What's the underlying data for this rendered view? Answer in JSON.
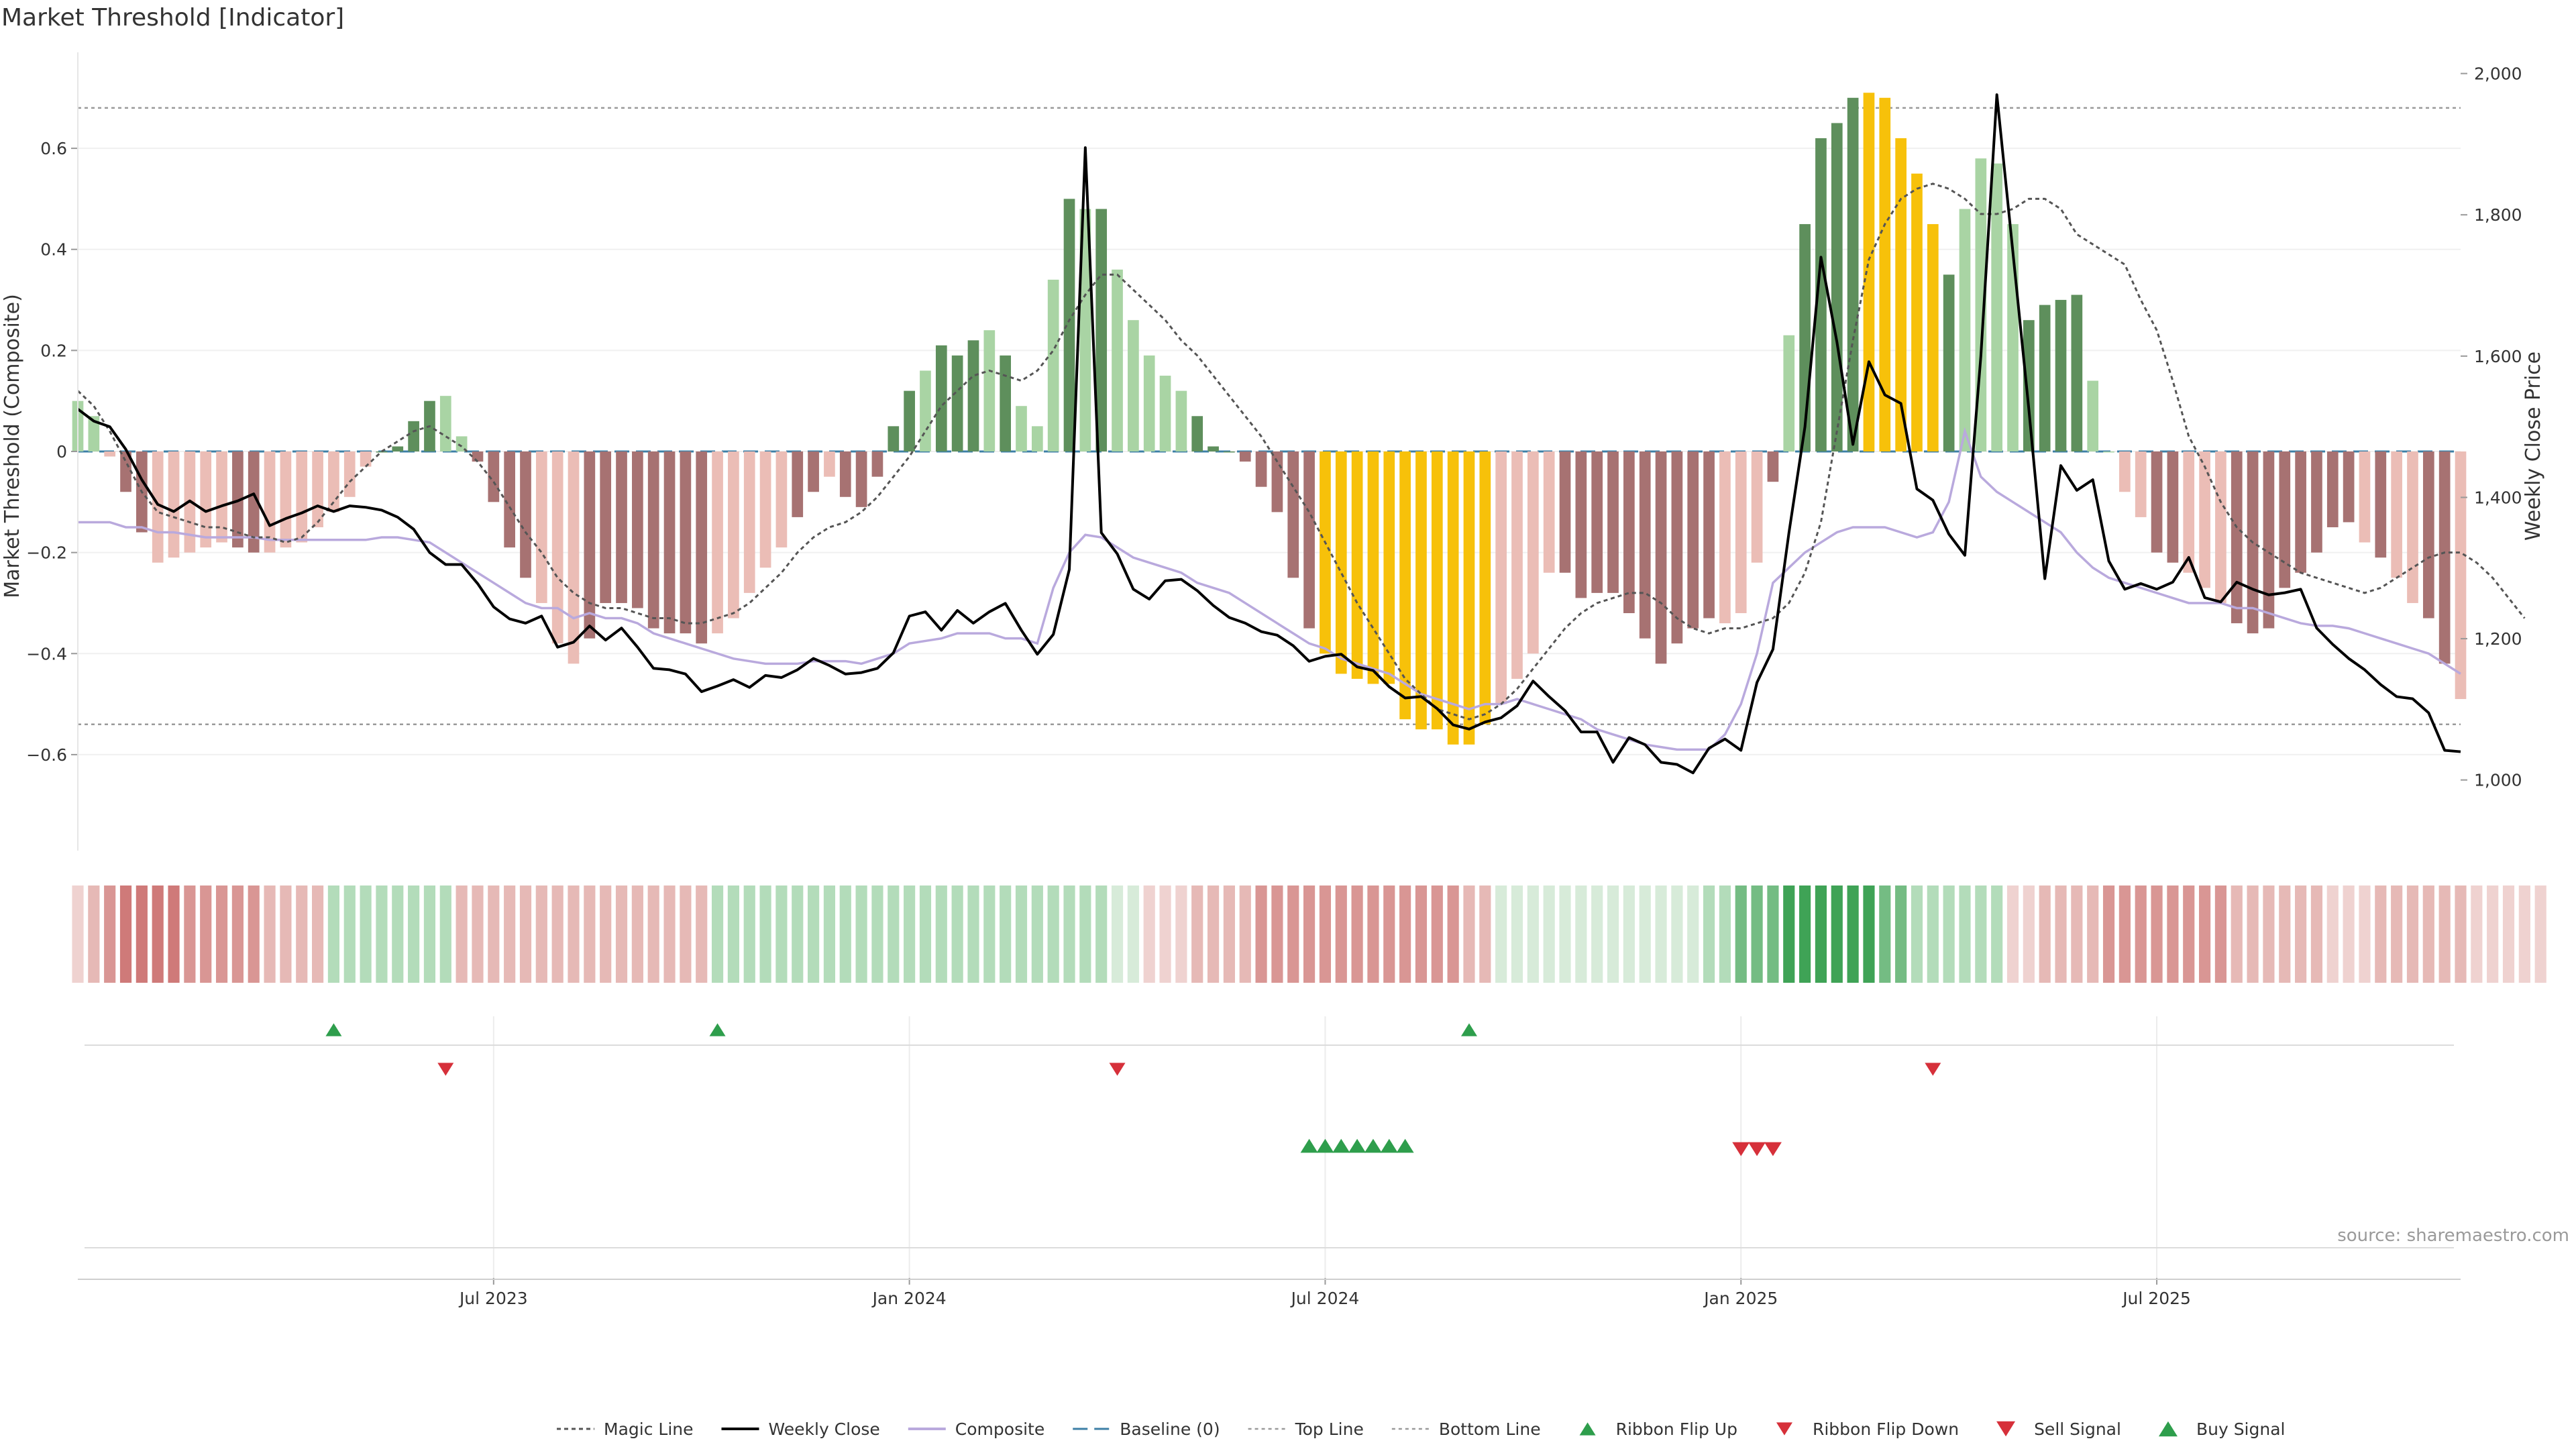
{
  "chart_data": {
    "type": "bar",
    "title": "Market Threshold [Indicator]",
    "ylabel_left": "Market Threshold (Composite)",
    "ylabel_right": "Weekly Close Price",
    "source": "source: sharemaestro.com",
    "ylim_left": [
      -0.79,
      0.79
    ],
    "ylim_right": [
      900,
      2030
    ],
    "yticks_left": [
      {
        "v": 0.6,
        "label": "0.6"
      },
      {
        "v": 0.4,
        "label": "0.4"
      },
      {
        "v": 0.2,
        "label": "0.2"
      },
      {
        "v": 0,
        "label": "0"
      },
      {
        "v": -0.2,
        "label": "−0.2"
      },
      {
        "v": -0.4,
        "label": "−0.4"
      },
      {
        "v": -0.6,
        "label": "−0.6"
      }
    ],
    "yticks_right": [
      {
        "v": 2000,
        "label": "2,000"
      },
      {
        "v": 1800,
        "label": "1,800"
      },
      {
        "v": 1600,
        "label": "1,600"
      },
      {
        "v": 1400,
        "label": "1,400"
      },
      {
        "v": 1200,
        "label": "1,200"
      },
      {
        "v": 1000,
        "label": "1,000"
      }
    ],
    "xticks": [
      {
        "week": 26,
        "label": "Jul 2023"
      },
      {
        "week": 52,
        "label": "Jan 2024"
      },
      {
        "week": 78,
        "label": "Jul 2024"
      },
      {
        "week": 104,
        "label": "Jan 2025"
      },
      {
        "week": 130,
        "label": "Jul 2025"
      }
    ],
    "top_line": 0.68,
    "bottom_line": -0.54,
    "baseline": 0,
    "colors": {
      "strong_pos": "#5e8f5c",
      "weak_pos": "#a9d4a4",
      "strong_neg": "#a77272",
      "weak_neg": "#ebbdb6",
      "extreme": "#f7c10a",
      "close": "#000000",
      "composite": "#b9a9dd",
      "magic": "#555555",
      "baseline": "#3d7fa6",
      "ref": "#9a9a9a",
      "buy": "#2e9e4c",
      "sell": "#d6303a"
    },
    "composite_bars": [
      0.1,
      0.07,
      -0.01,
      -0.08,
      -0.16,
      -0.22,
      -0.21,
      -0.2,
      -0.19,
      -0.18,
      -0.19,
      -0.2,
      -0.2,
      -0.19,
      -0.18,
      -0.15,
      -0.12,
      -0.09,
      -0.03,
      0.0,
      0.01,
      0.06,
      0.1,
      0.11,
      0.03,
      -0.02,
      -0.1,
      -0.19,
      -0.25,
      -0.3,
      -0.38,
      -0.42,
      -0.37,
      -0.3,
      -0.3,
      -0.31,
      -0.35,
      -0.36,
      -0.36,
      -0.38,
      -0.36,
      -0.33,
      -0.28,
      -0.23,
      -0.19,
      -0.13,
      -0.08,
      -0.05,
      -0.09,
      -0.11,
      -0.05,
      0.05,
      0.12,
      0.16,
      0.21,
      0.19,
      0.22,
      0.24,
      0.19,
      0.09,
      0.05,
      0.34,
      0.5,
      0.48,
      0.48,
      0.36,
      0.26,
      0.19,
      0.15,
      0.12,
      0.07,
      0.01,
      0.0,
      -0.02,
      -0.07,
      -0.12,
      -0.25,
      -0.35,
      -0.4,
      -0.44,
      -0.45,
      -0.46,
      -0.46,
      -0.53,
      -0.55,
      -0.55,
      -0.58,
      -0.58,
      -0.54,
      -0.5,
      -0.45,
      -0.4,
      -0.24,
      -0.24,
      -0.29,
      -0.28,
      -0.28,
      -0.32,
      -0.37,
      -0.42,
      -0.38,
      -0.35,
      -0.33,
      -0.34,
      -0.32,
      -0.22,
      -0.06,
      0.23,
      0.45,
      0.62,
      0.65,
      0.7,
      0.71,
      0.7,
      0.62,
      0.55,
      0.45,
      0.35,
      0.48,
      0.58,
      0.57,
      0.45,
      0.26,
      0.29,
      0.3,
      0.31,
      0.14,
      0.0,
      -0.08,
      -0.13,
      -0.2,
      -0.22,
      -0.24,
      -0.27,
      -0.3,
      -0.34,
      -0.36,
      -0.35,
      -0.27,
      -0.24,
      -0.2,
      -0.15,
      -0.14,
      -0.18,
      -0.21,
      -0.25,
      -0.3,
      -0.33,
      -0.42,
      -0.49
    ],
    "bar_states": "wwwsswwwwwsswwwwwwwsssswwsssswwwsssssssswwwwwsswssssswssswswwwswswwwwwssssssssexxxxxxxxxxwwwwsssssssssswwwswssssxxxxxswwwwsssswwwwsswwwsssssssswswwsswsssssswwwwwwsswwws",
    "weekly_close": [
      1525,
      1508,
      1500,
      1468,
      1425,
      1390,
      1380,
      1395,
      1380,
      1388,
      1395,
      1405,
      1360,
      1370,
      1378,
      1388,
      1380,
      1388,
      1386,
      1382,
      1372,
      1355,
      1322,
      1305,
      1305,
      1278,
      1245,
      1228,
      1222,
      1232,
      1188,
      1195,
      1218,
      1198,
      1215,
      1188,
      1158,
      1156,
      1150,
      1125,
      1133,
      1142,
      1131,
      1148,
      1145,
      1156,
      1172,
      1162,
      1150,
      1152,
      1158,
      1180,
      1232,
      1238,
      1212,
      1240,
      1222,
      1238,
      1250,
      1212,
      1178,
      1206,
      1298,
      1895,
      1350,
      1320,
      1270,
      1256,
      1282,
      1284,
      1268,
      1247,
      1230,
      1222,
      1210,
      1205,
      1190,
      1168,
      1175,
      1178,
      1160,
      1155,
      1132,
      1116,
      1118,
      1101,
      1078,
      1072,
      1082,
      1088,
      1105,
      1140,
      1118,
      1098,
      1068,
      1068,
      1025,
      1060,
      1050,
      1025,
      1022,
      1010,
      1045,
      1058,
      1042,
      1138,
      1185,
      1350,
      1500,
      1740,
      1620,
      1475,
      1592,
      1545,
      1533,
      1412,
      1396,
      1348,
      1318,
      1600,
      1970,
      1748,
      1525,
      1285,
      1445,
      1410,
      1425,
      1310,
      1270,
      1278,
      1270,
      1280,
      1315,
      1258,
      1252,
      1280,
      1270,
      1262,
      1265,
      1270,
      1215,
      1192,
      1172,
      1156,
      1135,
      1118,
      1115,
      1095,
      1042,
      1040
    ],
    "composite_line": [
      -0.14,
      -0.14,
      -0.14,
      -0.15,
      -0.15,
      -0.16,
      -0.16,
      -0.165,
      -0.17,
      -0.17,
      -0.17,
      -0.17,
      -0.175,
      -0.175,
      -0.175,
      -0.175,
      -0.175,
      -0.175,
      -0.175,
      -0.17,
      -0.17,
      -0.175,
      -0.18,
      -0.2,
      -0.22,
      -0.24,
      -0.26,
      -0.28,
      -0.3,
      -0.31,
      -0.31,
      -0.33,
      -0.32,
      -0.33,
      -0.33,
      -0.34,
      -0.36,
      -0.37,
      -0.38,
      -0.39,
      -0.4,
      -0.41,
      -0.415,
      -0.42,
      -0.42,
      -0.42,
      -0.415,
      -0.415,
      -0.415,
      -0.42,
      -0.41,
      -0.4,
      -0.38,
      -0.375,
      -0.37,
      -0.36,
      -0.36,
      -0.36,
      -0.37,
      -0.37,
      -0.38,
      -0.27,
      -0.2,
      -0.165,
      -0.17,
      -0.19,
      -0.21,
      -0.22,
      -0.23,
      -0.24,
      -0.26,
      -0.27,
      -0.28,
      -0.3,
      -0.32,
      -0.34,
      -0.36,
      -0.38,
      -0.39,
      -0.41,
      -0.42,
      -0.43,
      -0.44,
      -0.46,
      -0.48,
      -0.49,
      -0.5,
      -0.51,
      -0.5,
      -0.5,
      -0.49,
      -0.5,
      -0.51,
      -0.52,
      -0.53,
      -0.55,
      -0.56,
      -0.57,
      -0.58,
      -0.585,
      -0.59,
      -0.59,
      -0.59,
      -0.56,
      -0.5,
      -0.4,
      -0.26,
      -0.23,
      -0.2,
      -0.18,
      -0.16,
      -0.15,
      -0.15,
      -0.15,
      -0.16,
      -0.17,
      -0.16,
      -0.1,
      0.04,
      -0.05,
      -0.08,
      -0.1,
      -0.12,
      -0.14,
      -0.16,
      -0.2,
      -0.23,
      -0.25,
      -0.26,
      -0.27,
      -0.28,
      -0.29,
      -0.3,
      -0.3,
      -0.3,
      -0.31,
      -0.31,
      -0.32,
      -0.33,
      -0.34,
      -0.345,
      -0.345,
      -0.35,
      -0.36,
      -0.37,
      -0.38,
      -0.39,
      -0.4,
      -0.42,
      -0.44
    ],
    "magic_line": [
      0.12,
      0.09,
      0.04,
      -0.02,
      -0.08,
      -0.12,
      -0.13,
      -0.14,
      -0.15,
      -0.15,
      -0.16,
      -0.17,
      -0.17,
      -0.18,
      -0.17,
      -0.14,
      -0.1,
      -0.06,
      -0.03,
      0.0,
      0.02,
      0.04,
      0.05,
      0.03,
      0.01,
      -0.02,
      -0.06,
      -0.11,
      -0.16,
      -0.2,
      -0.25,
      -0.28,
      -0.3,
      -0.31,
      -0.31,
      -0.32,
      -0.33,
      -0.33,
      -0.34,
      -0.34,
      -0.33,
      -0.32,
      -0.3,
      -0.27,
      -0.24,
      -0.2,
      -0.17,
      -0.15,
      -0.14,
      -0.12,
      -0.09,
      -0.05,
      -0.01,
      0.04,
      0.09,
      0.12,
      0.15,
      0.16,
      0.15,
      0.14,
      0.16,
      0.2,
      0.26,
      0.31,
      0.35,
      0.35,
      0.32,
      0.29,
      0.26,
      0.22,
      0.19,
      0.15,
      0.11,
      0.07,
      0.03,
      -0.02,
      -0.07,
      -0.12,
      -0.18,
      -0.24,
      -0.3,
      -0.35,
      -0.4,
      -0.45,
      -0.48,
      -0.51,
      -0.52,
      -0.53,
      -0.52,
      -0.5,
      -0.47,
      -0.43,
      -0.39,
      -0.35,
      -0.32,
      -0.3,
      -0.29,
      -0.28,
      -0.28,
      -0.3,
      -0.33,
      -0.35,
      -0.36,
      -0.35,
      -0.35,
      -0.34,
      -0.33,
      -0.3,
      -0.24,
      -0.14,
      0.04,
      0.22,
      0.38,
      0.45,
      0.5,
      0.52,
      0.53,
      0.52,
      0.5,
      0.47,
      0.47,
      0.48,
      0.5,
      0.5,
      0.48,
      0.43,
      0.41,
      0.39,
      0.37,
      0.3,
      0.24,
      0.14,
      0.03,
      -0.03,
      -0.1,
      -0.15,
      -0.18,
      -0.2,
      -0.22,
      -0.24,
      -0.25,
      -0.26,
      -0.27,
      -0.28,
      -0.27,
      -0.25,
      -0.23,
      -0.21,
      -0.2,
      -0.2,
      -0.22,
      -0.25,
      -0.29,
      -0.33
    ],
    "ribbon_levels": [
      -1,
      -2,
      -3,
      -4,
      -4,
      -4,
      -4,
      -3,
      -3,
      -3,
      -3,
      -3,
      -2,
      -2,
      -2,
      -2,
      2,
      2,
      2,
      2,
      2,
      2,
      2,
      2,
      -2,
      -2,
      -2,
      -2,
      -2,
      -2,
      -2,
      -2,
      -2,
      -2,
      -2,
      -2,
      -2,
      -2,
      -2,
      -2,
      2,
      2,
      2,
      2,
      2,
      2,
      2,
      2,
      2,
      2,
      2,
      2,
      2,
      2,
      2,
      2,
      2,
      2,
      2,
      2,
      2,
      2,
      2,
      2,
      2,
      1,
      1,
      -1,
      -1,
      -1,
      -2,
      -2,
      -2,
      -2,
      -3,
      -3,
      -3,
      -3,
      -3,
      -3,
      -3,
      -3,
      -3,
      -3,
      -3,
      -3,
      -3,
      -2,
      -2,
      1,
      1,
      1,
      1,
      1,
      1,
      1,
      1,
      1,
      1,
      1,
      1,
      1,
      2,
      2,
      3,
      3,
      3,
      4,
      4,
      4,
      4,
      4,
      4,
      3,
      3,
      2,
      2,
      2,
      2,
      2,
      2,
      -1,
      -1,
      -2,
      -2,
      -2,
      -2,
      -3,
      -3,
      -3,
      -3,
      -3,
      -3,
      -3,
      -3,
      -2,
      -2,
      -2,
      -2,
      -2,
      -2,
      -1,
      -1,
      -1,
      -2,
      -2,
      -2,
      -2,
      -2,
      -2,
      -1,
      -1,
      -1,
      -1,
      -1
    ],
    "ribbon_flip_up": [
      16,
      40,
      87
    ],
    "ribbon_flip_down": [
      23,
      65,
      116
    ],
    "buy_signals": [
      77,
      78,
      79,
      80,
      81,
      82,
      83
    ],
    "sell_signals": [
      104,
      105,
      106
    ],
    "legend": [
      {
        "key": "magic",
        "label": "Magic Line"
      },
      {
        "key": "close",
        "label": "Weekly Close"
      },
      {
        "key": "composite",
        "label": "Composite"
      },
      {
        "key": "baseline",
        "label": "Baseline (0)"
      },
      {
        "key": "top",
        "label": "Top Line"
      },
      {
        "key": "bottom",
        "label": "Bottom Line"
      },
      {
        "key": "flip_up",
        "label": "Ribbon Flip Up"
      },
      {
        "key": "flip_down",
        "label": "Ribbon Flip Down"
      },
      {
        "key": "sell",
        "label": "Sell Signal"
      },
      {
        "key": "buy",
        "label": "Buy Signal"
      }
    ]
  }
}
